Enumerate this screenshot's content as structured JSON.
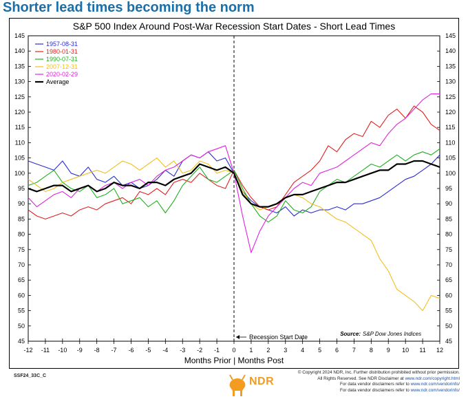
{
  "headline": "Shorter lead times becoming the norm",
  "footer": {
    "chart_id": "SSF24_33C_C",
    "copyright_line1": "© Copyright 2024 NDR, Inc. Further distribution prohibited without prior permission.",
    "copyright_line2_prefix": "All Rights Reserved. See NDR Disclaimer at ",
    "copyright_line2_link": "www.ndr.com/copyright.html",
    "copyright_line3_prefix": "For data vendor disclaimers refer to ",
    "copyright_line3_link": "www.ndr.com/vendorinfo/",
    "copyright_line4_prefix": "For data vendor disclaimers refer to ",
    "copyright_line4_link": "www.ndr.com/vendorinfo/",
    "logo": "NDR"
  },
  "chart_data": {
    "type": "line",
    "title": "S&P 500 Index Around Post-War Recession Start Dates - Short Lead Times",
    "xlabel": "Months Prior | Months Post",
    "ylabel": "",
    "xlim": [
      -12,
      12
    ],
    "ylim": [
      45,
      145
    ],
    "x_ticks": [
      -12,
      -11,
      -10,
      -9,
      -8,
      -7,
      -6,
      -5,
      -4,
      -3,
      -2,
      -1,
      0,
      1,
      2,
      3,
      4,
      5,
      6,
      7,
      8,
      9,
      10,
      11,
      12
    ],
    "y_ticks": [
      45,
      50,
      55,
      60,
      65,
      70,
      75,
      80,
      85,
      90,
      95,
      100,
      105,
      110,
      115,
      120,
      125,
      130,
      135,
      140,
      145
    ],
    "annotation": "Recession Start Date",
    "source_label": "Source:",
    "source_text": "S&P Dow Jones Indices",
    "legend_position": "top-left",
    "series": [
      {
        "name": "1957-08-31",
        "color": "#2b2bd0",
        "x": [
          -12,
          -11.5,
          -11,
          -10.5,
          -10,
          -9.5,
          -9,
          -8.5,
          -8,
          -7.5,
          -7,
          -6.5,
          -6,
          -5.5,
          -5,
          -4.5,
          -4,
          -3.5,
          -3,
          -2.5,
          -2,
          -1.5,
          -1,
          -0.5,
          0,
          0.5,
          1,
          1.5,
          2,
          2.5,
          3,
          3.5,
          4,
          4.5,
          5,
          5.5,
          6,
          6.5,
          7,
          7.5,
          8,
          8.5,
          9,
          9.5,
          10,
          10.5,
          11,
          11.5,
          12
        ],
        "values": [
          104,
          103,
          102,
          101,
          104,
          100,
          99,
          102,
          98,
          97,
          99,
          96,
          97,
          95,
          96,
          98,
          101,
          99,
          104,
          106,
          105,
          107,
          104,
          105,
          100,
          94,
          91,
          89,
          88,
          87,
          89,
          86,
          88,
          87,
          88,
          88,
          89,
          88,
          90,
          90,
          91,
          92,
          94,
          96,
          98,
          99,
          101,
          103,
          106
        ]
      },
      {
        "name": "1980-01-31",
        "color": "#e02020",
        "x": [
          -12,
          -11.5,
          -11,
          -10.5,
          -10,
          -9.5,
          -9,
          -8.5,
          -8,
          -7.5,
          -7,
          -6.5,
          -6,
          -5.5,
          -5,
          -4.5,
          -4,
          -3.5,
          -3,
          -2.5,
          -2,
          -1.5,
          -1,
          -0.5,
          0,
          0.5,
          1,
          1.5,
          2,
          2.5,
          3,
          3.5,
          4,
          4.5,
          5,
          5.5,
          6,
          6.5,
          7,
          7.5,
          8,
          8.5,
          9,
          9.5,
          10,
          10.5,
          11,
          11.5,
          12
        ],
        "values": [
          88,
          86,
          85,
          86,
          87,
          86,
          88,
          89,
          88,
          90,
          91,
          92,
          90,
          94,
          93,
          95,
          93,
          97,
          98,
          97,
          100,
          98,
          96,
          95,
          101,
          96,
          92,
          89,
          88,
          89,
          93,
          97,
          99,
          101,
          104,
          109,
          107,
          111,
          113,
          112,
          117,
          115,
          119,
          121,
          118,
          122,
          120,
          116,
          114
        ]
      },
      {
        "name": "1990-07-31",
        "color": "#20b020",
        "x": [
          -12,
          -11.5,
          -11,
          -10.5,
          -10,
          -9.5,
          -9,
          -8.5,
          -8,
          -7.5,
          -7,
          -6.5,
          -6,
          -5.5,
          -5,
          -4.5,
          -4,
          -3.5,
          -3,
          -2.5,
          -2,
          -1.5,
          -1,
          -0.5,
          0,
          0.5,
          1,
          1.5,
          2,
          2.5,
          3,
          3.5,
          4,
          4.5,
          5,
          5.5,
          6,
          6.5,
          7,
          7.5,
          8,
          8.5,
          9,
          9.5,
          10,
          10.5,
          11,
          11.5,
          12
        ],
        "values": [
          96,
          97,
          99,
          101,
          97,
          95,
          94,
          96,
          92,
          93,
          95,
          90,
          91,
          92,
          89,
          91,
          87,
          91,
          96,
          99,
          102,
          98,
          97,
          99,
          101,
          95,
          90,
          86,
          84,
          86,
          91,
          88,
          87,
          89,
          94,
          96,
          98,
          97,
          99,
          101,
          103,
          102,
          104,
          106,
          104,
          106,
          107,
          106,
          108
        ]
      },
      {
        "name": "2007-12-31",
        "color": "#f0c020",
        "x": [
          -12,
          -11.5,
          -11,
          -10.5,
          -10,
          -9.5,
          -9,
          -8.5,
          -8,
          -7.5,
          -7,
          -6.5,
          -6,
          -5.5,
          -5,
          -4.5,
          -4,
          -3.5,
          -3,
          -2.5,
          -2,
          -1.5,
          -1,
          -0.5,
          0,
          0.5,
          1,
          1.5,
          2,
          2.5,
          3,
          3.5,
          4,
          4.5,
          5,
          5.5,
          6,
          6.5,
          7,
          7.5,
          8,
          8.5,
          9,
          9.5,
          10,
          10.5,
          11,
          11.5,
          12
        ],
        "values": [
          98,
          96,
          94,
          95,
          97,
          98,
          99,
          100,
          101,
          100,
          102,
          104,
          103,
          101,
          103,
          105,
          102,
          104,
          100,
          101,
          104,
          103,
          100,
          101,
          100,
          94,
          90,
          88,
          89,
          90,
          92,
          93,
          92,
          90,
          89,
          87,
          85,
          84,
          82,
          80,
          78,
          72,
          68,
          62,
          60,
          58,
          55,
          60,
          59
        ]
      },
      {
        "name": "2020-02-29",
        "color": "#e020e0",
        "x": [
          -12,
          -11.5,
          -11,
          -10.5,
          -10,
          -9.5,
          -9,
          -8.5,
          -8,
          -7.5,
          -7,
          -6.5,
          -6,
          -5.5,
          -5,
          -4.5,
          -4,
          -3.5,
          -3,
          -2.5,
          -2,
          -1.5,
          -1,
          -0.5,
          0,
          0.5,
          1,
          1.5,
          2,
          2.5,
          3,
          3.5,
          4,
          4.5,
          5,
          5.5,
          6,
          6.5,
          7,
          7.5,
          8,
          8.5,
          9,
          9.5,
          10,
          10.5,
          11,
          11.5,
          12
        ],
        "values": [
          92,
          89,
          91,
          93,
          94,
          92,
          95,
          96,
          94,
          96,
          97,
          95,
          97,
          98,
          96,
          99,
          101,
          102,
          104,
          106,
          105,
          107,
          108,
          109,
          100,
          86,
          74,
          81,
          86,
          89,
          92,
          95,
          97,
          96,
          100,
          101,
          102,
          104,
          106,
          108,
          110,
          109,
          113,
          116,
          118,
          121,
          124,
          126,
          126
        ]
      },
      {
        "name": "Average",
        "color": "#000000",
        "x": [
          -12,
          -11.5,
          -11,
          -10.5,
          -10,
          -9.5,
          -9,
          -8.5,
          -8,
          -7.5,
          -7,
          -6.5,
          -6,
          -5.5,
          -5,
          -4.5,
          -4,
          -3.5,
          -3,
          -2.5,
          -2,
          -1.5,
          -1,
          -0.5,
          0,
          0.5,
          1,
          1.5,
          2,
          2.5,
          3,
          3.5,
          4,
          4.5,
          5,
          5.5,
          6,
          6.5,
          7,
          7.5,
          8,
          8.5,
          9,
          9.5,
          10,
          10.5,
          11,
          11.5,
          12
        ],
        "values": [
          95,
          94,
          95,
          96,
          96,
          94,
          95,
          96,
          94,
          95,
          97,
          96,
          96,
          95,
          97,
          97,
          96,
          98,
          99,
          100,
          103,
          102,
          101,
          102,
          100,
          93,
          90,
          89,
          89,
          90,
          92,
          93,
          93,
          94,
          95,
          96,
          97,
          97,
          98,
          99,
          100,
          101,
          101,
          103,
          103,
          104,
          104,
          103,
          102
        ]
      }
    ]
  }
}
